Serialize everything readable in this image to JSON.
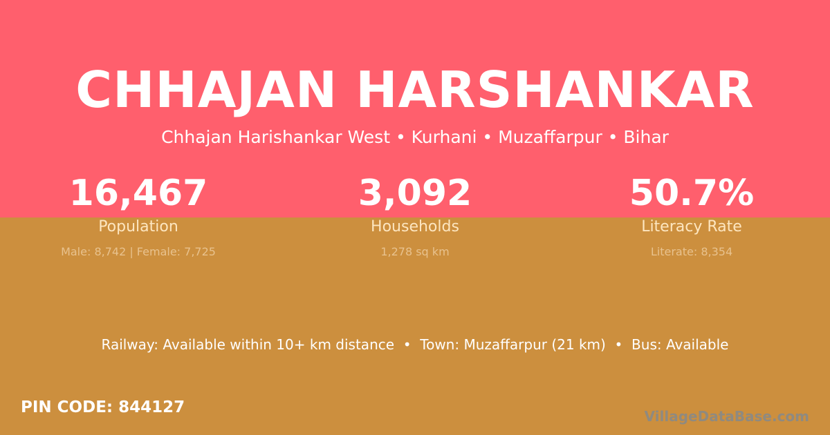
{
  "title": "CHHAJAN HARSHANKAR",
  "subtitle": "Chhajan Harishankar West • Kurhani • Muzaffarpur • Bihar",
  "stats": [
    {
      "value": "16,467",
      "label": "Population",
      "detail": "Male: 8,742 | Female: 7,725"
    },
    {
      "value": "3,092",
      "label": "Households",
      "detail": "1,278 sq km"
    },
    {
      "value": "50.7%",
      "label": "Literacy Rate",
      "detail": "Literate: 8,354"
    }
  ],
  "facts": "Railway: Available within 10+ km distance  •  Town: Muzaffarpur (21 km)  •  Bus: Available",
  "pin": "PIN CODE: 844127",
  "watermark": "VillageDataBase.com",
  "colors": {
    "top": "#ff5f6d",
    "bottom": "#cc8f3e"
  }
}
